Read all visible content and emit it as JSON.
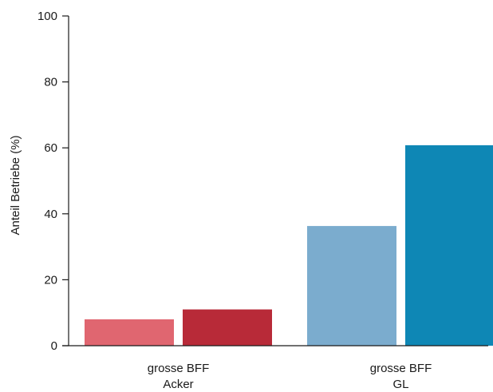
{
  "chart_data": {
    "type": "bar",
    "categories": [
      [
        "grosse BFF",
        "Acker"
      ],
      [
        "grosse BFF",
        "GL"
      ]
    ],
    "values": [
      [
        8,
        11
      ],
      [
        36.3,
        60.8
      ]
    ],
    "colors": [
      [
        "#e06670",
        "#b82a38"
      ],
      [
        "#7bacce",
        "#0e87b5"
      ]
    ],
    "ylabel": "Anteil Betriebe (%)",
    "xlabel": "",
    "title": "",
    "ylim": [
      0,
      100
    ],
    "yticks": [
      0,
      20,
      40,
      60,
      80,
      100
    ],
    "grid": false,
    "legend": "none"
  }
}
